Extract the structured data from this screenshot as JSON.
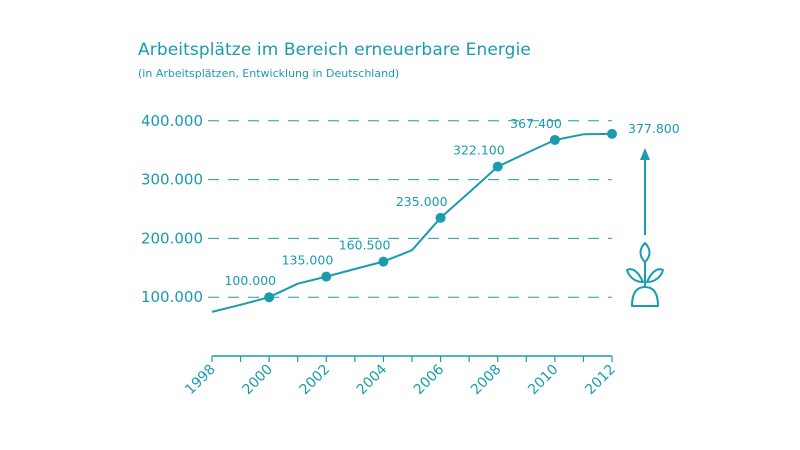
{
  "header": {
    "title": "Arbeitsplätze im Bereich erneuerbare Energie",
    "subtitle": "(in Arbeitsplätzen, Entwicklung in Deutschland)"
  },
  "colors": {
    "accent": "#1a9cae"
  },
  "icons": {
    "trend": "up-arrow-icon",
    "growth": "sprout-icon"
  },
  "chart_data": {
    "type": "line",
    "x": [
      1998,
      1999,
      2000,
      2001,
      2002,
      2003,
      2004,
      2005,
      2006,
      2007,
      2008,
      2009,
      2010,
      2011,
      2012
    ],
    "y": [
      75000,
      87000,
      100000,
      123000,
      135000,
      148000,
      160500,
      180000,
      235000,
      278000,
      322100,
      345000,
      367400,
      377000,
      377800
    ],
    "markers": [
      {
        "x": 2000,
        "y": 100000,
        "label": "100.000"
      },
      {
        "x": 2002,
        "y": 135000,
        "label": "135.000"
      },
      {
        "x": 2004,
        "y": 160500,
        "label": "160.500"
      },
      {
        "x": 2006,
        "y": 235000,
        "label": "235.000"
      },
      {
        "x": 2008,
        "y": 322100,
        "label": "322.100"
      },
      {
        "x": 2010,
        "y": 367400,
        "label": "367.400"
      },
      {
        "x": 2012,
        "y": 377800,
        "label": "377.800"
      }
    ],
    "yticks": [
      {
        "value": 100000,
        "label": "100.000"
      },
      {
        "value": 200000,
        "label": "200.000"
      },
      {
        "value": 300000,
        "label": "300.000"
      },
      {
        "value": 400000,
        "label": "400.000"
      }
    ],
    "xticks": [
      1998,
      2000,
      2002,
      2004,
      2006,
      2008,
      2010,
      2012
    ],
    "xlim": [
      1998,
      2012
    ],
    "ylim": [
      0,
      400000
    ],
    "grid": "dashed-horizontal",
    "title": "Arbeitsplätze im Bereich erneuerbare Energie",
    "subtitle": "(in Arbeitsplätzen, Entwicklung in Deutschland)"
  }
}
